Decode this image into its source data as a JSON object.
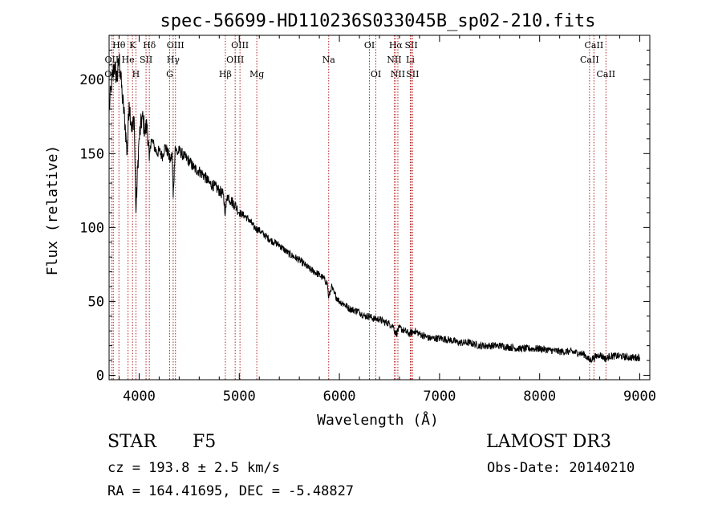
{
  "chart_data": {
    "type": "line",
    "title": "spec-56699-HD110236S033045B_sp02-210.fits",
    "xlabel": "Wavelength (Å)",
    "ylabel": "Flux (relative)",
    "xlim": [
      3700,
      9100
    ],
    "ylim": [
      -3,
      230
    ],
    "xticks": [
      4000,
      5000,
      6000,
      7000,
      8000,
      9000
    ],
    "yticks": [
      0,
      50,
      100,
      150,
      200
    ],
    "xtick_labels": [
      "4000",
      "5000",
      "6000",
      "7000",
      "8000",
      "9000"
    ],
    "ytick_labels": [
      "0",
      "50",
      "100",
      "150",
      "200"
    ],
    "grid": false,
    "series": [
      {
        "name": "flux",
        "x": [
          3700,
          3720,
          3750,
          3780,
          3800,
          3830,
          3860,
          3880,
          3900,
          3930,
          3950,
          3968,
          3985,
          4000,
          4030,
          4060,
          4080,
          4101,
          4120,
          4150,
          4180,
          4200,
          4230,
          4260,
          4290,
          4310,
          4330,
          4340,
          4360,
          4380,
          4400,
          4450,
          4500,
          4550,
          4600,
          4650,
          4700,
          4750,
          4800,
          4840,
          4861,
          4880,
          4920,
          4960,
          5000,
          5050,
          5100,
          5150,
          5200,
          5250,
          5300,
          5350,
          5400,
          5450,
          5500,
          5550,
          5600,
          5650,
          5700,
          5750,
          5800,
          5850,
          5880,
          5893,
          5920,
          5950,
          6000,
          6050,
          6100,
          6150,
          6200,
          6250,
          6300,
          6350,
          6400,
          6450,
          6500,
          6540,
          6563,
          6600,
          6650,
          6700,
          6750,
          6800,
          6900,
          7000,
          7100,
          7200,
          7300,
          7400,
          7500,
          7600,
          7700,
          7800,
          7900,
          8000,
          8100,
          8200,
          8300,
          8400,
          8450,
          8498,
          8542,
          8600,
          8662,
          8700,
          8800,
          8900,
          9000
        ],
        "values": [
          178,
          195,
          210,
          200,
          215,
          190,
          170,
          150,
          185,
          165,
          175,
          110,
          140,
          160,
          175,
          165,
          170,
          145,
          160,
          155,
          150,
          152,
          148,
          155,
          150,
          145,
          150,
          120,
          155,
          150,
          152,
          148,
          145,
          140,
          138,
          135,
          130,
          128,
          125,
          122,
          110,
          122,
          118,
          115,
          110,
          108,
          105,
          100,
          98,
          95,
          92,
          90,
          88,
          85,
          82,
          80,
          78,
          75,
          72,
          70,
          68,
          65,
          62,
          52,
          60,
          55,
          50,
          48,
          45,
          44,
          43,
          40,
          40,
          38,
          38,
          36,
          35,
          33,
          28,
          32,
          30,
          28,
          30,
          28,
          25,
          25,
          24,
          22,
          22,
          20,
          20,
          20,
          19,
          18,
          18,
          18,
          17,
          16,
          16,
          15,
          14,
          10,
          12,
          14,
          11,
          13,
          13,
          12,
          12
        ]
      }
    ],
    "line_markers": [
      {
        "label": "Hθ",
        "x": 3798,
        "row": 1
      },
      {
        "label": "OII",
        "x": 3727,
        "row": 2
      },
      {
        "label": "OIII",
        "x": 3742,
        "row": 3
      },
      {
        "label": "K",
        "x": 3934,
        "row": 1
      },
      {
        "label": "He",
        "x": 3889,
        "row": 2
      },
      {
        "label": "H",
        "x": 3968,
        "row": 3
      },
      {
        "label": "SII",
        "x": 4069,
        "row": 2
      },
      {
        "label": "Hδ",
        "x": 4102,
        "row": 1
      },
      {
        "label": "OIII",
        "x": 4363,
        "row": 1
      },
      {
        "label": "Hγ",
        "x": 4340,
        "row": 2
      },
      {
        "label": "G",
        "x": 4305,
        "row": 3
      },
      {
        "label": "Hβ",
        "x": 4861,
        "row": 3
      },
      {
        "label": "OIII",
        "x": 5007,
        "row": 1
      },
      {
        "label": "OIII",
        "x": 4959,
        "row": 2
      },
      {
        "label": "Mg",
        "x": 5175,
        "row": 3
      },
      {
        "label": "Na",
        "x": 5893,
        "row": 2
      },
      {
        "label": "OI",
        "x": 6300,
        "row": 1
      },
      {
        "label": "OI",
        "x": 6364,
        "row": 3
      },
      {
        "label": "Hα",
        "x": 6563,
        "row": 1
      },
      {
        "label": "NII",
        "x": 6548,
        "row": 2
      },
      {
        "label": "NII",
        "x": 6584,
        "row": 3
      },
      {
        "label": "SII",
        "x": 6717,
        "row": 1
      },
      {
        "label": "Li",
        "x": 6708,
        "row": 2
      },
      {
        "label": "SII",
        "x": 6731,
        "row": 3
      },
      {
        "label": "CaII",
        "x": 8542,
        "row": 1
      },
      {
        "label": "CaII",
        "x": 8498,
        "row": 2
      },
      {
        "label": "CaII",
        "x": 8662,
        "row": 3
      }
    ]
  },
  "info": {
    "object_class": "STAR",
    "subclass": "F5",
    "survey": "LAMOST DR3",
    "cz": "cz = 193.8 ± 2.5 km/s",
    "obs_date": "Obs-Date: 20140210",
    "coords": "RA = 164.41695, DEC =  -5.48827"
  },
  "colors": {
    "line_marker": "#b22222",
    "spectrum": "#000000"
  }
}
